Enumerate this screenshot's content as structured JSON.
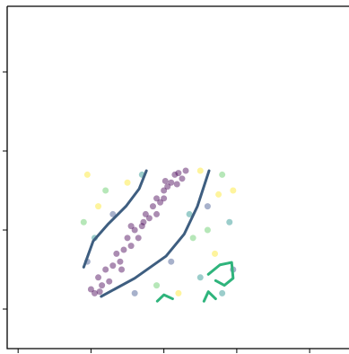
{
  "chart_data": {
    "type": "scatter",
    "xlim": [
      -0.15,
      4.54
    ],
    "ylim": [
      -0.5,
      3.83
    ],
    "xticks": [
      0,
      1,
      2,
      3,
      4
    ],
    "yticks": [
      0,
      1,
      2,
      3
    ],
    "point_alpha": 0.45,
    "groups": [
      {
        "color": "#440154",
        "x": [
          1.0,
          1.1,
          1.15,
          1.2,
          1.3,
          1.35,
          1.45,
          1.5,
          1.55,
          1.6,
          1.7,
          1.75,
          1.8,
          1.85,
          1.9,
          1.95,
          2.0,
          2.05,
          2.1,
          2.15,
          2.2,
          2.25,
          1.25,
          1.4,
          1.65,
          2.0,
          2.3,
          1.05,
          1.55,
          1.9,
          1.12,
          1.42,
          1.72,
          2.02,
          2.18
        ],
        "y": [
          0.25,
          0.4,
          0.3,
          0.5,
          0.55,
          0.7,
          0.75,
          0.9,
          0.8,
          1.0,
          1.05,
          1.2,
          1.15,
          1.3,
          1.4,
          1.35,
          1.5,
          1.55,
          1.6,
          1.7,
          1.72,
          1.65,
          0.35,
          0.6,
          0.9,
          1.4,
          1.75,
          0.2,
          1.05,
          1.2,
          0.22,
          0.5,
          1.1,
          1.62,
          1.58
        ]
      },
      {
        "color": "#fde725",
        "x": [
          0.95,
          1.5,
          2.5,
          2.95,
          2.7,
          2.2,
          1.1,
          2.75
        ],
        "y": [
          1.7,
          1.6,
          1.75,
          1.5,
          0.7,
          0.2,
          1.3,
          1.45
        ]
      },
      {
        "color": "#5ec962",
        "x": [
          1.2,
          2.8,
          2.4,
          1.9,
          0.9,
          2.6
        ],
        "y": [
          1.5,
          1.7,
          0.9,
          0.3,
          1.1,
          1.0
        ]
      },
      {
        "color": "#21918c",
        "x": [
          1.05,
          1.7,
          2.9,
          2.5,
          2.8,
          2.35
        ],
        "y": [
          0.9,
          1.7,
          1.1,
          0.4,
          0.2,
          1.2
        ]
      },
      {
        "color": "#3b528b",
        "x": [
          0.95,
          1.3,
          2.6,
          2.95,
          1.6,
          2.1
        ],
        "y": [
          0.6,
          1.2,
          1.3,
          0.5,
          0.2,
          0.6
        ]
      }
    ],
    "contours": [
      {
        "color": "#3e5e80",
        "x": [
          0.9,
          1.03,
          1.23,
          1.48,
          1.66,
          1.76
        ],
        "y": [
          0.53,
          0.86,
          1.07,
          1.3,
          1.52,
          1.75
        ]
      },
      {
        "color": "#3e5e80",
        "x": [
          1.14,
          1.6,
          2.03,
          2.28,
          2.46,
          2.62
        ],
        "y": [
          0.16,
          0.39,
          0.67,
          0.95,
          1.3,
          1.75
        ]
      },
      {
        "color": "#2fb47c",
        "x": [
          2.61,
          2.77,
          2.93,
          2.95,
          2.83,
          2.71
        ],
        "y": [
          0.44,
          0.56,
          0.59,
          0.39,
          0.3,
          0.36
        ]
      },
      {
        "color": "#2fb47c",
        "x": [
          1.91,
          2.0,
          2.12
        ],
        "y": [
          0.1,
          0.18,
          0.13
        ]
      },
      {
        "color": "#2fb47c",
        "x": [
          2.55,
          2.61,
          2.71
        ],
        "y": [
          0.1,
          0.22,
          0.13
        ]
      }
    ]
  }
}
